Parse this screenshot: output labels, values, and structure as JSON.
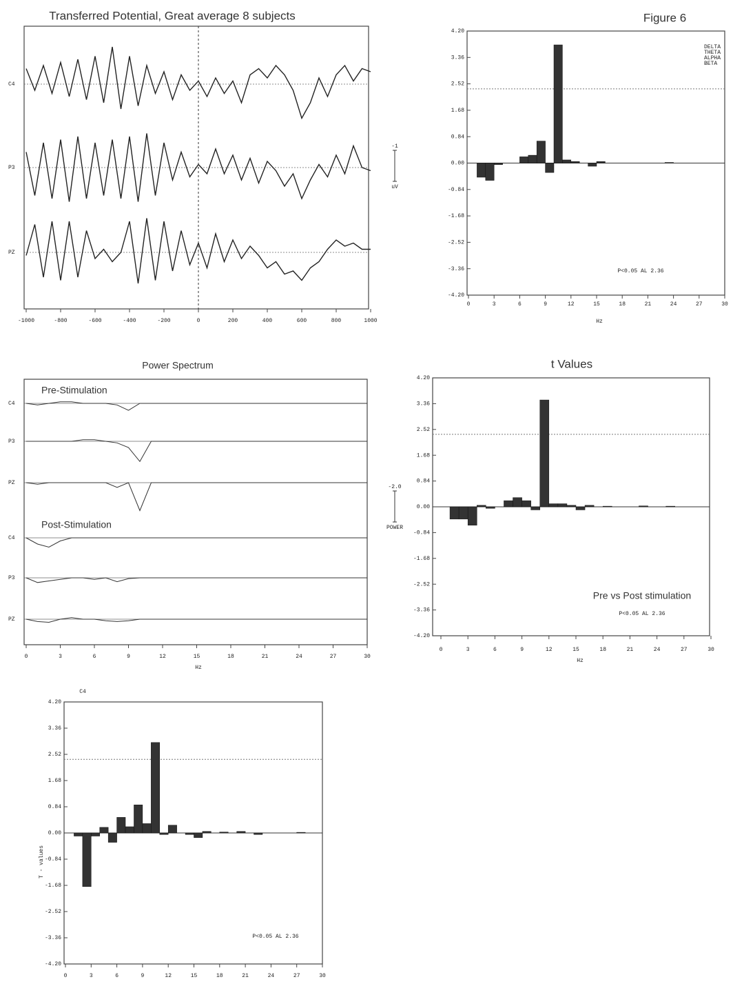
{
  "chart_data": [
    {
      "type": "line",
      "title": "Transferred Potential, Great average 8 subjects",
      "x": [
        -1000,
        -950,
        -900,
        -850,
        -800,
        -750,
        -700,
        -650,
        -600,
        -550,
        -500,
        -450,
        -400,
        -350,
        -300,
        -250,
        -200,
        -150,
        -100,
        -50,
        0,
        50,
        100,
        150,
        200,
        250,
        300,
        350,
        400,
        450,
        500,
        550,
        600,
        650,
        700,
        750,
        800,
        850,
        900,
        950,
        1000
      ],
      "series": [
        {
          "name": "C4",
          "color": "#222",
          "values": [
            0.5,
            -0.2,
            0.6,
            -0.3,
            0.7,
            -0.4,
            0.8,
            -0.5,
            0.9,
            -0.6,
            1.2,
            -0.8,
            0.9,
            -0.7,
            0.6,
            -0.3,
            0.4,
            -0.5,
            0.3,
            -0.2,
            0.1,
            -0.4,
            0.2,
            -0.3,
            0.1,
            -0.6,
            0.3,
            0.5,
            0.2,
            0.6,
            0.3,
            -0.2,
            -1.1,
            -0.6,
            0.2,
            -0.4,
            0.3,
            0.6,
            0.1,
            0.5,
            0.4
          ]
        },
        {
          "name": "P3",
          "color": "#222",
          "values": [
            0.5,
            -0.9,
            0.8,
            -1.0,
            0.9,
            -1.1,
            1.0,
            -1.0,
            0.8,
            -0.9,
            0.9,
            -1.0,
            1.0,
            -1.1,
            1.1,
            -0.9,
            0.8,
            -0.4,
            0.5,
            -0.3,
            0.1,
            -0.2,
            0.6,
            -0.2,
            0.4,
            -0.4,
            0.3,
            -0.5,
            0.2,
            -0.1,
            -0.6,
            -0.2,
            -1.0,
            -0.4,
            0.1,
            -0.3,
            0.4,
            -0.2,
            0.7,
            0.0,
            -0.1
          ]
        },
        {
          "name": "PZ",
          "color": "#222",
          "values": [
            -0.1,
            0.9,
            -0.8,
            1.0,
            -0.9,
            1.0,
            -0.8,
            0.7,
            -0.2,
            0.1,
            -0.3,
            0.0,
            1.0,
            -1.0,
            1.1,
            -0.9,
            1.0,
            -0.6,
            0.7,
            -0.4,
            0.3,
            -0.5,
            0.6,
            -0.3,
            0.4,
            -0.2,
            0.2,
            -0.1,
            -0.5,
            -0.3,
            -0.7,
            -0.6,
            -0.9,
            -0.5,
            -0.3,
            0.1,
            0.4,
            0.2,
            0.3,
            0.1,
            0.1
          ]
        }
      ],
      "xlim": [
        -1000,
        1000
      ],
      "xticks": [
        -1000,
        -800,
        -600,
        -400,
        -200,
        0,
        200,
        400,
        600,
        800,
        1000
      ],
      "scale_bar": -1,
      "scale_unit": "uV"
    },
    {
      "type": "bar",
      "title": "Figure 6",
      "xlabel": "Hz",
      "x": [
        0,
        1,
        2,
        3,
        4,
        5,
        6,
        7,
        8,
        9,
        10,
        11,
        12,
        13,
        14,
        15,
        16,
        17,
        18,
        19,
        20,
        21,
        22,
        23,
        24,
        25,
        26,
        27,
        28,
        29
      ],
      "values": [
        0,
        -0.45,
        -0.55,
        -0.05,
        0,
        0,
        0.2,
        0.25,
        0.7,
        -0.3,
        3.76,
        0.1,
        0.05,
        0,
        -0.1,
        0.05,
        0,
        0,
        0,
        0,
        0,
        0,
        0,
        0.02,
        0,
        0,
        0,
        0,
        0,
        0
      ],
      "color": "#333",
      "xlim": [
        0,
        30
      ],
      "xticks": [
        0,
        3,
        6,
        9,
        12,
        15,
        18,
        21,
        24,
        27,
        30
      ],
      "ylim": [
        -4.2,
        4.2
      ],
      "yticks": [
        {
          "value": -4.2,
          "label": "-4.20"
        },
        {
          "value": -3.36,
          "label": "-3.36"
        },
        {
          "value": -2.52,
          "label": "-2.52"
        },
        {
          "value": -1.68,
          "label": "-1.68"
        },
        {
          "value": -0.84,
          "label": "-0.84"
        },
        {
          "value": 0,
          "label": "0.00"
        },
        {
          "value": 0.84,
          "label": "0.84"
        },
        {
          "value": 1.68,
          "label": "1.68"
        },
        {
          "value": 2.52,
          "label": "2.52"
        },
        {
          "value": 3.36,
          "label": "3.36"
        },
        {
          "value": 4.2,
          "label": "4.20"
        }
      ],
      "threshold": 2.36,
      "band_labels": [
        "DELTA",
        "THETA",
        "ALPHA",
        "BETA"
      ],
      "annotations": [
        "P<0.05 AL 2.36"
      ]
    },
    {
      "type": "line",
      "title": "Power Spectrum",
      "xlabel": "Hz",
      "x": [
        0,
        1,
        2,
        3,
        4,
        5,
        6,
        7,
        8,
        9,
        10,
        11,
        12,
        13,
        14,
        15,
        16,
        17,
        18,
        19,
        20,
        21,
        22,
        23,
        24,
        25,
        26,
        27,
        28,
        29,
        30
      ],
      "groups": [
        {
          "name": "Pre-Stimulation",
          "series": [
            {
              "name": "C4",
              "color": "#333",
              "values": [
                0,
                -0.1,
                0,
                0.1,
                0.1,
                0,
                0,
                0,
                -0.1,
                -0.45,
                0,
                0,
                0,
                0,
                0,
                0,
                0,
                0,
                0,
                0,
                0,
                0,
                0,
                0,
                0,
                0,
                0,
                0,
                0,
                0,
                0
              ]
            },
            {
              "name": "P3",
              "color": "#333",
              "values": [
                0,
                0,
                0,
                0,
                0,
                0.1,
                0.1,
                0,
                -0.1,
                -0.4,
                -1.3,
                0,
                0,
                0,
                0,
                0,
                0,
                0,
                0,
                0,
                0,
                0,
                0,
                0,
                0,
                0,
                0,
                0,
                0,
                0,
                0
              ]
            },
            {
              "name": "PZ",
              "color": "#333",
              "values": [
                0,
                -0.1,
                0,
                0,
                0,
                0,
                0,
                0,
                -0.3,
                0,
                -1.8,
                0,
                0,
                0,
                0,
                0,
                0,
                0,
                0,
                0,
                0,
                0,
                0,
                0,
                0,
                0,
                0,
                0,
                0,
                0,
                0
              ]
            }
          ]
        },
        {
          "name": "Post-Stimulation",
          "series": [
            {
              "name": "C4",
              "color": "#333",
              "values": [
                0,
                -0.4,
                -0.6,
                -0.2,
                0,
                0,
                0,
                0,
                0,
                0,
                0,
                0,
                0,
                0,
                0,
                0,
                0,
                0,
                0,
                0,
                0,
                0,
                0,
                0,
                0,
                0,
                0,
                0,
                0,
                0,
                0
              ]
            },
            {
              "name": "P3",
              "color": "#333",
              "values": [
                0,
                -0.3,
                -0.2,
                -0.1,
                0,
                0,
                -0.1,
                0,
                -0.25,
                -0.05,
                0,
                0,
                0,
                0,
                0,
                0,
                0,
                0,
                0,
                0,
                0,
                0,
                0,
                0,
                0,
                0,
                0,
                0,
                0,
                0,
                0
              ]
            },
            {
              "name": "PZ",
              "color": "#333",
              "values": [
                0,
                -0.15,
                -0.2,
                0,
                0.1,
                0,
                0,
                -0.1,
                -0.15,
                -0.1,
                0,
                0,
                0,
                0,
                0,
                0,
                0,
                0,
                0,
                0,
                0,
                0,
                0,
                0,
                0,
                0,
                0,
                0,
                0,
                0,
                0
              ]
            }
          ]
        }
      ],
      "xlim": [
        0,
        30
      ],
      "xticks": [
        0,
        3,
        6,
        9,
        12,
        15,
        18,
        21,
        24,
        27,
        30
      ],
      "scale_bar": {
        "value": -2,
        "label": "-2.0"
      },
      "scale_unit": "POWER"
    },
    {
      "type": "bar",
      "title": "t Values",
      "xlabel": "Hz",
      "x": [
        0,
        1,
        2,
        3,
        4,
        5,
        6,
        7,
        8,
        9,
        10,
        11,
        12,
        13,
        14,
        15,
        16,
        17,
        18,
        19,
        20,
        21,
        22,
        23,
        24,
        25,
        26,
        27,
        28,
        29
      ],
      "values": [
        0,
        -0.4,
        -0.4,
        -0.6,
        0.05,
        -0.05,
        0,
        0.2,
        0.3,
        0.2,
        -0.1,
        3.48,
        0.1,
        0.1,
        0.05,
        -0.1,
        0.05,
        0,
        0.02,
        0,
        0,
        0,
        0.03,
        0,
        0,
        0.02,
        0,
        0,
        0,
        0
      ],
      "color": "#333",
      "xlim": [
        0,
        30
      ],
      "xticks": [
        0,
        3,
        6,
        9,
        12,
        15,
        18,
        21,
        24,
        27,
        30
      ],
      "ylim": [
        -4.2,
        4.2
      ],
      "yticks": [
        {
          "value": -4.2,
          "label": "-4.20"
        },
        {
          "value": -3.36,
          "label": "-3.36"
        },
        {
          "value": -2.52,
          "label": "-2.52"
        },
        {
          "value": -1.68,
          "label": "-1.68"
        },
        {
          "value": -0.84,
          "label": "-0.84"
        },
        {
          "value": 0,
          "label": "0.00"
        },
        {
          "value": 0.84,
          "label": "0.84"
        },
        {
          "value": 1.68,
          "label": "1.68"
        },
        {
          "value": 2.52,
          "label": "2.52"
        },
        {
          "value": 3.36,
          "label": "3.36"
        },
        {
          "value": 4.2,
          "label": "4.20"
        }
      ],
      "threshold": 2.36,
      "annotations": [
        "Pre vs Post stimulation",
        "P<0.05 AL 2.36"
      ]
    },
    {
      "type": "bar",
      "title": "C4",
      "ylabel": "T - values",
      "x": [
        0,
        1,
        2,
        3,
        4,
        5,
        6,
        7,
        8,
        9,
        10,
        11,
        12,
        13,
        14,
        15,
        16,
        17,
        18,
        19,
        20,
        21,
        22,
        23,
        24,
        25,
        26,
        27,
        28,
        29
      ],
      "values": [
        0,
        -0.1,
        -1.72,
        -0.1,
        0.18,
        -0.3,
        0.5,
        0.2,
        0.9,
        0.3,
        2.9,
        -0.05,
        0.25,
        0,
        -0.05,
        -0.15,
        0.05,
        0,
        0.03,
        0,
        0.05,
        0,
        -0.05,
        0,
        0,
        0,
        0,
        0.02,
        0,
        0
      ],
      "color": "#333",
      "xlim": [
        0,
        30
      ],
      "xticks": [
        0,
        3,
        6,
        9,
        12,
        15,
        18,
        21,
        24,
        27,
        30
      ],
      "ylim": [
        -4.2,
        4.2
      ],
      "yticks": [
        {
          "value": -4.2,
          "label": "-4.20"
        },
        {
          "value": -3.36,
          "label": "-3.36"
        },
        {
          "value": -2.52,
          "label": "-2.52"
        },
        {
          "value": -1.68,
          "label": "-1.68"
        },
        {
          "value": -0.84,
          "label": "-0.84"
        },
        {
          "value": 0,
          "label": "0.00"
        },
        {
          "value": 0.84,
          "label": "0.84"
        },
        {
          "value": 1.68,
          "label": "1.68"
        },
        {
          "value": 2.52,
          "label": "2.52"
        },
        {
          "value": 3.36,
          "label": "3.36"
        },
        {
          "value": 4.2,
          "label": "4.20"
        }
      ],
      "threshold": 2.36,
      "annotations": [
        "P<0.05 AL 2.36"
      ]
    }
  ]
}
